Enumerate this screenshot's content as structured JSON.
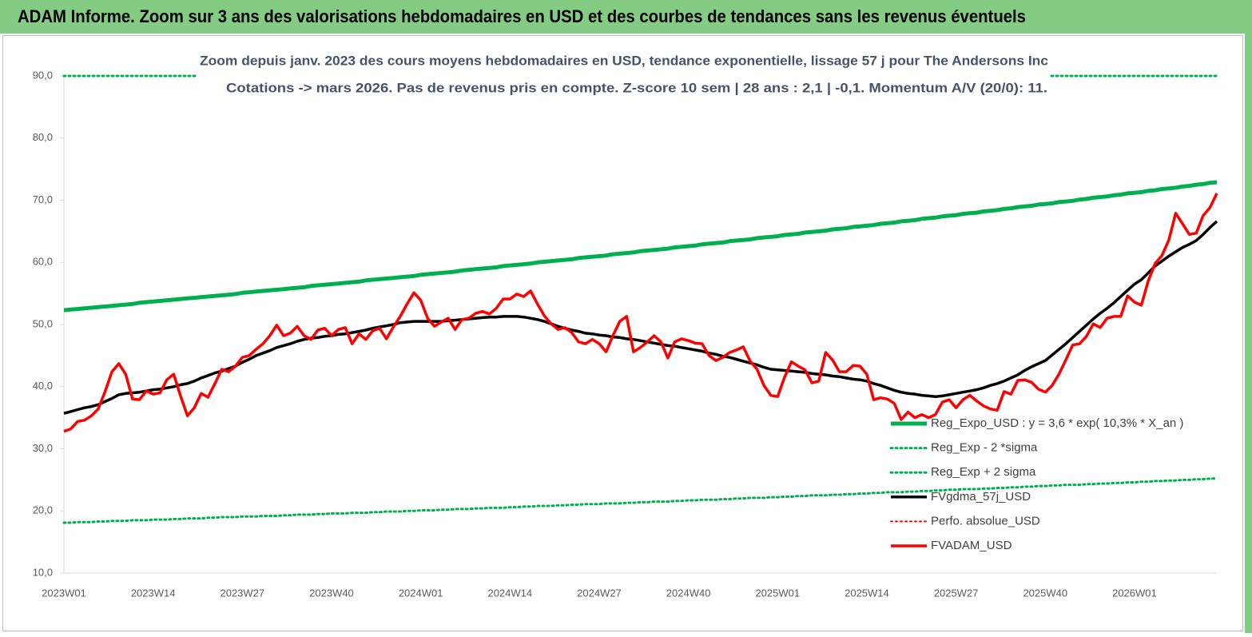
{
  "chart_data": {
    "type": "line",
    "title": "ADAM Informe. Zoom sur 3 ans des valorisations hebdomadaires en USD et des courbes de tendances sans les revenus éventuels",
    "subtitle": [
      "Zoom depuis janv. 2023 des cours moyens hebdomadaires en USD, tendance exponentielle, lissage 57 j pour The Andersons Inc",
      "Cotations -> mars 2026. Pas de revenus pris en  compte. Z-score 10 sem  | 28 ans : 2,1 | -0,1. Momentum A/V (20/0): 11."
    ],
    "categories": [
      "2023W01",
      null,
      null,
      null,
      null,
      null,
      null,
      null,
      null,
      null,
      null,
      null,
      null,
      "2023W14",
      null,
      null,
      null,
      null,
      null,
      null,
      null,
      null,
      null,
      null,
      null,
      null,
      "2023W27",
      null,
      null,
      null,
      null,
      null,
      null,
      null,
      null,
      null,
      null,
      null,
      null,
      "2023W40",
      null,
      null,
      null,
      null,
      null,
      null,
      null,
      null,
      null,
      null,
      null,
      null,
      "2024W01",
      null,
      null,
      null,
      null,
      null,
      null,
      null,
      null,
      null,
      null,
      null,
      null,
      "2024W14",
      null,
      null,
      null,
      null,
      null,
      null,
      null,
      null,
      null,
      null,
      null,
      null,
      "2024W27",
      null,
      null,
      null,
      null,
      null,
      null,
      null,
      null,
      null,
      null,
      null,
      null,
      "2024W40",
      null,
      null,
      null,
      null,
      null,
      null,
      null,
      null,
      null,
      null,
      null,
      null,
      "2025W01",
      null,
      null,
      null,
      null,
      null,
      null,
      null,
      null,
      null,
      null,
      null,
      null,
      "2025W14",
      null,
      null,
      null,
      null,
      null,
      null,
      null,
      null,
      null,
      null,
      null,
      null,
      "2025W27",
      null,
      null,
      null,
      null,
      null,
      null,
      null,
      null,
      null,
      null,
      null,
      null,
      "2025W40",
      null,
      null,
      null,
      null,
      null,
      null,
      null,
      null,
      null,
      null,
      null,
      null,
      "2026W01",
      null,
      null,
      null,
      null,
      null,
      null,
      null,
      null,
      null,
      null,
      null,
      null
    ],
    "ylim": [
      10,
      90
    ],
    "yticks": [
      {
        "value": 10,
        "label": "10,0"
      },
      {
        "value": 20,
        "label": "20,0"
      },
      {
        "value": 30,
        "label": "30,0"
      },
      {
        "value": 40,
        "label": "40,0"
      },
      {
        "value": 50,
        "label": "50,0"
      },
      {
        "value": 60,
        "label": "60,0"
      },
      {
        "value": 70,
        "label": "70,0"
      },
      {
        "value": 80,
        "label": "80,0"
      },
      {
        "value": 90,
        "label": "90,0"
      }
    ],
    "grid": false,
    "series": [
      {
        "name": "Reg_Expo_USD : y = 3,6 * exp( 10,3% *  X_an )",
        "color": "#00b050",
        "style": "solid",
        "width": 5,
        "values": [
          52.3,
          52.4,
          52.5,
          52.6,
          52.7,
          52.8,
          52.9,
          53.0,
          53.1,
          53.2,
          53.3,
          53.5,
          53.6,
          53.7,
          53.8,
          53.9,
          54.0,
          54.1,
          54.2,
          54.3,
          54.4,
          54.5,
          54.6,
          54.7,
          54.8,
          54.9,
          55.1,
          55.2,
          55.3,
          55.4,
          55.5,
          55.6,
          55.7,
          55.8,
          55.9,
          56.0,
          56.2,
          56.3,
          56.4,
          56.5,
          56.6,
          56.7,
          56.8,
          56.9,
          57.1,
          57.2,
          57.3,
          57.4,
          57.5,
          57.6,
          57.7,
          57.8,
          58.0,
          58.1,
          58.2,
          58.3,
          58.4,
          58.5,
          58.7,
          58.8,
          58.9,
          59.0,
          59.1,
          59.2,
          59.4,
          59.5,
          59.6,
          59.7,
          59.8,
          60.0,
          60.1,
          60.2,
          60.3,
          60.4,
          60.5,
          60.7,
          60.8,
          60.9,
          61.0,
          61.1,
          61.3,
          61.4,
          61.5,
          61.6,
          61.8,
          61.9,
          62.0,
          62.1,
          62.2,
          62.4,
          62.5,
          62.6,
          62.7,
          62.9,
          63.0,
          63.1,
          63.2,
          63.4,
          63.5,
          63.6,
          63.7,
          63.9,
          64.0,
          64.1,
          64.2,
          64.4,
          64.5,
          64.6,
          64.8,
          64.9,
          65.0,
          65.1,
          65.3,
          65.4,
          65.5,
          65.7,
          65.8,
          65.9,
          66.0,
          66.2,
          66.3,
          66.4,
          66.6,
          66.7,
          66.8,
          67.0,
          67.1,
          67.2,
          67.4,
          67.5,
          67.6,
          67.8,
          67.9,
          68.0,
          68.2,
          68.3,
          68.4,
          68.6,
          68.7,
          68.9,
          69.0,
          69.1,
          69.3,
          69.4,
          69.5,
          69.7,
          69.8,
          69.9,
          70.1,
          70.2,
          70.4,
          70.5,
          70.6,
          70.8,
          70.9,
          71.1,
          71.2,
          71.3,
          71.5,
          71.6,
          71.8,
          71.9,
          72.0,
          72.2,
          72.3,
          72.5,
          72.6,
          72.8,
          72.9
        ]
      },
      {
        "name": "Reg_Exp - 2 *sigma",
        "color": "#00b050",
        "style": "dotted",
        "width": 3,
        "values": [
          18.1,
          18.1,
          18.2,
          18.2,
          18.2,
          18.3,
          18.3,
          18.4,
          18.4,
          18.4,
          18.5,
          18.5,
          18.5,
          18.6,
          18.6,
          18.6,
          18.7,
          18.7,
          18.8,
          18.8,
          18.8,
          18.9,
          18.9,
          19.0,
          19.0,
          19.0,
          19.1,
          19.1,
          19.1,
          19.2,
          19.2,
          19.2,
          19.3,
          19.3,
          19.4,
          19.4,
          19.4,
          19.5,
          19.5,
          19.6,
          19.6,
          19.6,
          19.7,
          19.7,
          19.7,
          19.8,
          19.8,
          19.9,
          19.9,
          19.9,
          20.0,
          20.0,
          20.1,
          20.1,
          20.1,
          20.2,
          20.2,
          20.3,
          20.3,
          20.3,
          20.4,
          20.4,
          20.5,
          20.5,
          20.5,
          20.6,
          20.6,
          20.7,
          20.7,
          20.8,
          20.8,
          20.8,
          20.9,
          20.9,
          21.0,
          21.0,
          21.1,
          21.1,
          21.1,
          21.2,
          21.2,
          21.2,
          21.3,
          21.3,
          21.4,
          21.4,
          21.5,
          21.5,
          21.5,
          21.6,
          21.6,
          21.7,
          21.7,
          21.8,
          21.8,
          21.8,
          21.9,
          21.9,
          22.0,
          22.0,
          22.1,
          22.1,
          22.1,
          22.2,
          22.2,
          22.3,
          22.3,
          22.4,
          22.4,
          22.5,
          22.5,
          22.5,
          22.6,
          22.6,
          22.7,
          22.7,
          22.8,
          22.8,
          22.9,
          22.9,
          23.0,
          23.0,
          23.0,
          23.1,
          23.1,
          23.2,
          23.2,
          23.3,
          23.3,
          23.4,
          23.4,
          23.5,
          23.5,
          23.5,
          23.6,
          23.6,
          23.7,
          23.7,
          23.8,
          23.8,
          23.9,
          23.9,
          24.0,
          24.0,
          24.1,
          24.1,
          24.2,
          24.2,
          24.2,
          24.3,
          24.3,
          24.4,
          24.4,
          24.5,
          24.5,
          24.6,
          24.6,
          24.7,
          24.7,
          24.8,
          24.8,
          24.9,
          24.9,
          25.0,
          25.0,
          25.1,
          25.1,
          25.2,
          25.2
        ]
      },
      {
        "name": "Reg_Exp + 2 sigma",
        "color": "#00b050",
        "style": "dotted",
        "width": 3,
        "values": [
          90,
          90,
          90,
          90,
          90,
          90,
          90,
          90,
          90,
          90,
          90,
          90,
          90,
          90,
          90,
          90,
          90,
          90,
          90,
          90,
          90,
          90,
          90,
          90,
          90,
          90,
          90,
          90,
          90,
          90,
          90,
          90,
          90,
          90,
          90,
          90,
          90,
          90,
          90,
          90,
          90,
          90,
          90,
          90,
          90,
          90,
          90,
          90,
          90,
          90,
          90,
          90,
          90,
          90,
          90,
          90,
          90,
          90,
          90,
          90,
          90,
          90,
          90,
          90,
          90,
          90,
          90,
          90,
          90,
          90,
          90,
          90,
          90,
          90,
          90,
          90,
          90,
          90,
          90,
          90,
          90,
          90,
          90,
          90,
          90,
          90,
          90,
          90,
          90,
          90,
          90,
          90,
          90,
          90,
          90,
          90,
          90,
          90,
          90,
          90,
          90,
          90,
          90,
          90,
          90,
          90,
          90,
          90,
          90,
          90,
          90,
          90,
          90,
          90,
          90,
          90,
          90,
          90,
          90,
          90,
          90,
          90,
          90,
          90,
          90,
          90,
          90,
          90,
          90,
          90,
          90,
          90,
          90,
          90,
          90,
          90,
          90,
          90,
          90,
          90,
          90,
          90,
          90,
          90,
          90,
          90,
          90,
          90,
          90,
          90,
          90,
          90,
          90,
          90,
          90,
          90,
          90,
          90,
          90,
          90,
          90,
          90,
          90,
          90,
          90,
          90,
          90,
          90,
          90
        ]
      },
      {
        "name": "FVgdma_57j_USD",
        "color": "#000000",
        "style": "solid",
        "width": 3.5,
        "values": [
          35.7,
          36.0,
          36.3,
          36.6,
          36.8,
          37.1,
          37.6,
          38.1,
          38.7,
          38.9,
          39.0,
          39.1,
          39.3,
          39.5,
          39.6,
          39.8,
          40.0,
          40.3,
          40.5,
          40.9,
          41.4,
          41.8,
          42.2,
          42.5,
          42.9,
          43.3,
          43.9,
          44.4,
          45.0,
          45.4,
          45.8,
          46.3,
          46.6,
          46.9,
          47.3,
          47.6,
          47.8,
          47.9,
          48.1,
          48.2,
          48.4,
          48.5,
          48.7,
          48.9,
          49.1,
          49.4,
          49.6,
          49.8,
          50.0,
          50.3,
          50.4,
          50.5,
          50.5,
          50.5,
          50.5,
          50.5,
          50.6,
          50.7,
          50.8,
          50.9,
          51.0,
          51.1,
          51.2,
          51.2,
          51.3,
          51.3,
          51.3,
          51.2,
          51.0,
          50.8,
          50.5,
          50.1,
          49.7,
          49.4,
          49.1,
          48.9,
          48.6,
          48.5,
          48.3,
          48.2,
          48.0,
          47.9,
          47.7,
          47.6,
          47.4,
          47.2,
          47.0,
          46.8,
          46.6,
          46.5,
          46.3,
          46.1,
          45.9,
          45.7,
          45.4,
          45.2,
          44.9,
          44.7,
          44.4,
          44.1,
          43.8,
          43.5,
          43.1,
          42.8,
          42.7,
          42.6,
          42.5,
          42.4,
          42.3,
          42.1,
          42.0,
          41.9,
          41.7,
          41.6,
          41.4,
          41.2,
          41.1,
          40.9,
          40.5,
          40.2,
          39.8,
          39.4,
          39.1,
          38.9,
          38.8,
          38.6,
          38.5,
          38.4,
          38.5,
          38.7,
          38.9,
          39.1,
          39.3,
          39.5,
          39.8,
          40.2,
          40.5,
          40.9,
          41.4,
          41.9,
          42.6,
          43.2,
          43.7,
          44.2,
          45.1,
          46.0,
          46.9,
          47.9,
          48.9,
          49.9,
          50.9,
          51.8,
          52.6,
          53.5,
          54.5,
          55.5,
          56.5,
          57.2,
          58.3,
          59.4,
          60.2,
          61.0,
          61.7,
          62.4,
          62.9,
          63.5,
          64.5,
          65.6,
          66.6
        ]
      },
      {
        "name": "Perfo. absolue_USD",
        "color": "#ff0000",
        "style": "dotted",
        "width": 2
      },
      {
        "name": "FVADAM_USD",
        "color": "#ff0000",
        "style": "solid",
        "width": 3.5,
        "values": [
          32.8,
          33.2,
          34.4,
          34.6,
          35.3,
          36.4,
          39.2,
          42.4,
          43.7,
          42.0,
          38.0,
          37.9,
          39.3,
          38.8,
          39.0,
          41.1,
          42.0,
          38.5,
          35.3,
          36.6,
          38.9,
          38.3,
          40.5,
          42.8,
          42.4,
          43.3,
          44.7,
          45.0,
          46.0,
          46.9,
          48.2,
          49.9,
          48.2,
          48.6,
          49.7,
          48.2,
          47.6,
          49.1,
          49.4,
          48.2,
          49.2,
          49.5,
          46.9,
          48.5,
          47.6,
          49.0,
          49.4,
          47.7,
          49.6,
          51.3,
          53.3,
          55.1,
          53.9,
          51.0,
          49.7,
          50.4,
          51.0,
          49.2,
          50.8,
          51.0,
          51.8,
          52.1,
          51.7,
          52.6,
          54.1,
          54.1,
          54.9,
          54.5,
          55.4,
          53.3,
          51.4,
          50.1,
          49.2,
          49.5,
          48.7,
          47.2,
          46.9,
          47.6,
          46.9,
          45.6,
          48.2,
          50.5,
          51.3,
          45.6,
          46.3,
          47.2,
          48.2,
          47.2,
          44.6,
          47.2,
          47.7,
          47.4,
          47.0,
          46.9,
          45.0,
          44.2,
          44.7,
          45.5,
          45.9,
          46.4,
          44.1,
          42.8,
          40.2,
          38.6,
          38.4,
          41.5,
          44.0,
          43.3,
          42.7,
          40.6,
          40.9,
          45.5,
          44.3,
          42.4,
          42.4,
          43.4,
          43.3,
          42.0,
          37.9,
          38.2,
          38.0,
          37.3,
          34.7,
          35.9,
          35.0,
          35.5,
          35.0,
          35.5,
          37.5,
          37.9,
          36.6,
          37.9,
          38.6,
          37.7,
          36.9,
          36.4,
          36.2,
          39.2,
          38.8,
          41.0,
          41.1,
          40.7,
          39.6,
          39.1,
          40.2,
          42.0,
          44.3,
          46.7,
          46.9,
          48.1,
          50.1,
          49.5,
          51.0,
          51.3,
          51.3,
          54.6,
          53.6,
          53.1,
          57.0,
          59.8,
          61.1,
          63.6,
          67.9,
          66.2,
          64.5,
          64.7,
          67.5,
          68.8,
          71.1
        ]
      }
    ]
  }
}
